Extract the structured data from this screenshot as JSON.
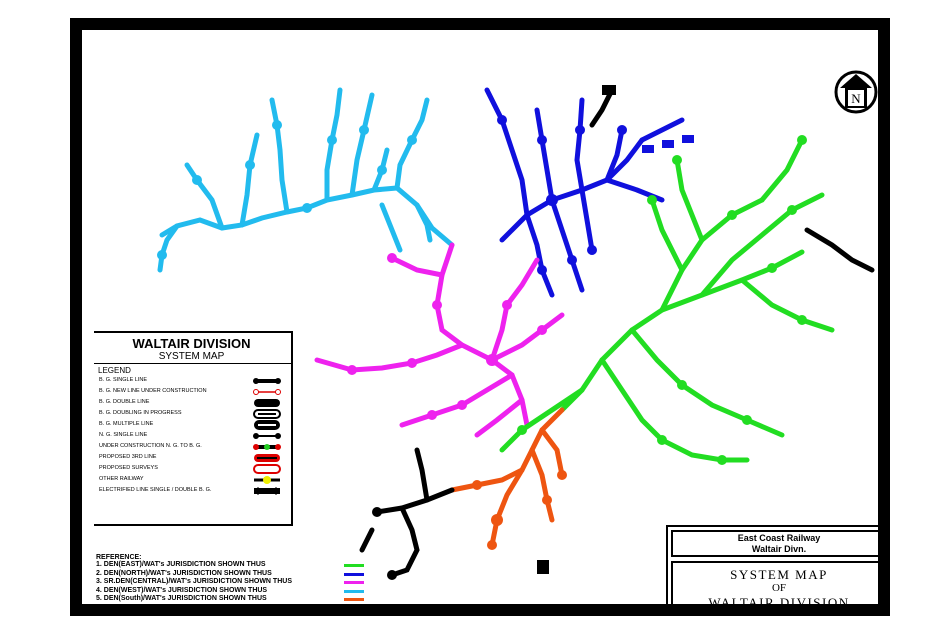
{
  "legend": {
    "title": "WALTAIR DIVISION",
    "subtitle": "SYSTEM MAP",
    "heading": "LEGEND",
    "items": [
      {
        "label": "B. G. SINGLE LINE",
        "symbol": "bg-single"
      },
      {
        "label": "B. G. NEW LINE UNDER CONSTRUCTION",
        "symbol": "new-line"
      },
      {
        "label": "B. G. DOUBLE LINE",
        "symbol": "bg-double"
      },
      {
        "label": "B. G. DOUBLING IN PROGRESS",
        "symbol": "doubling"
      },
      {
        "label": "B. G. MULTIPLE LINE",
        "symbol": "multiple"
      },
      {
        "label": "N. G. SINGLE LINE",
        "symbol": "ng-single"
      },
      {
        "label": "UNDER CONSTRUCTION N. G. TO B. G.",
        "symbol": "gauge-conv"
      },
      {
        "label": "PROPOSED 3RD LINE",
        "symbol": "third-line"
      },
      {
        "label": "PROPOSED SURVEYS",
        "symbol": "surveys"
      },
      {
        "label": "OTHER RAILWAY",
        "symbol": "other-railway"
      },
      {
        "label": "ELECTRIFIED LINE SINGLE / DOUBLE B. G.",
        "symbol": "electrified"
      }
    ]
  },
  "references": {
    "title": "REFERENCE:",
    "items": [
      {
        "label": "1.  DEN(EAST)/WAT's JURISDICTION SHOWN THUS",
        "color": "#22dd22"
      },
      {
        "label": "2.  DEN(NORTH)/WAT's JURISDICTION SHOWN THUS",
        "color": "#1010dd"
      },
      {
        "label": "3.  SR.DEN(CENTRAL)/WAT's JURISDICTION SHOWN THUS",
        "color": "#ee22ee"
      },
      {
        "label": "4.  DEN(WEST)/WAT's JURISDICTION SHOWN THUS",
        "color": "#22bbee"
      },
      {
        "label": "5.  DEN(South)/WAT's JURISDICTION SHOWN THUS",
        "color": "#ee5511"
      }
    ]
  },
  "title_block": {
    "railway": "East Coast Railway",
    "division": "Waltair Divn.",
    "line1": "SYSTEM  MAP",
    "line2": "OF",
    "line3": "WALTAIR  DIVISION"
  },
  "north_arrow": {
    "label": "N",
    "icon": "north-arrow-icon"
  },
  "map_labels": [
    {
      "text": "WALTAIR DIVISION",
      "hidden": true
    }
  ],
  "colors": {
    "east": "#22dd22",
    "north": "#1010dd",
    "central": "#ee22ee",
    "west": "#22bbee",
    "south": "#ee5511",
    "other": "#000000",
    "frame": "#000000"
  }
}
